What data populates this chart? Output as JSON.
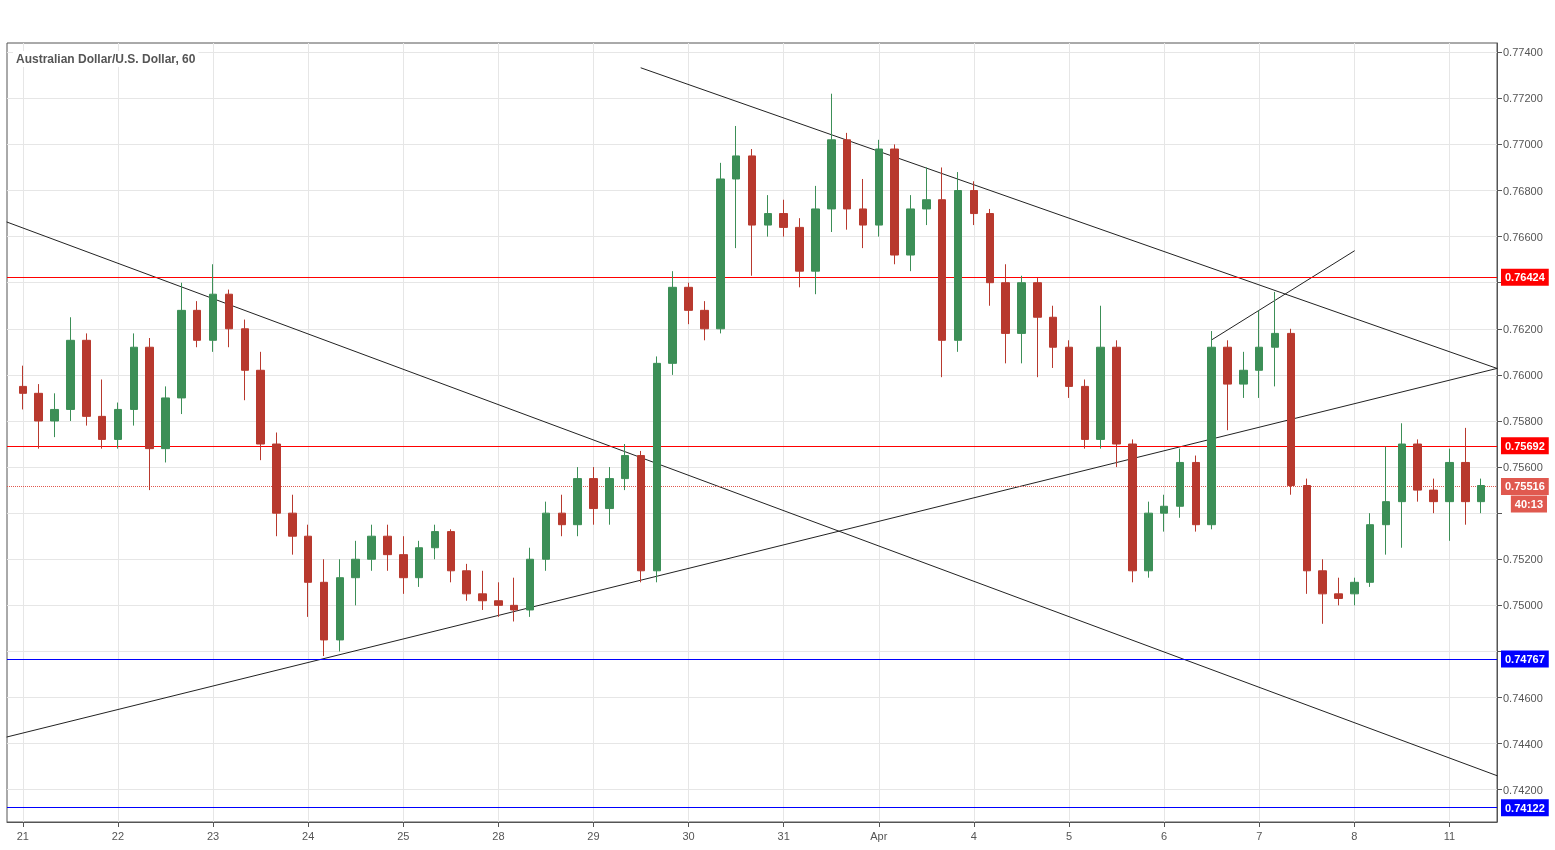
{
  "chart_data": {
    "type": "candlestick",
    "title": "Australian Dollar/U.S. Dollar, 60",
    "categories": [
      null,
      "21",
      null,
      null,
      null,
      null,
      null,
      "22",
      null,
      null,
      null,
      null,
      null,
      "23",
      null,
      null,
      null,
      null,
      null,
      "24",
      null,
      null,
      null,
      null,
      null,
      "25",
      null,
      null,
      null,
      null,
      null,
      "28",
      null,
      null,
      null,
      null,
      null,
      "29",
      null,
      null,
      null,
      null,
      null,
      "30",
      null,
      null,
      null,
      null,
      null,
      "31",
      null,
      null,
      null,
      null,
      null,
      "Apr",
      null,
      null,
      null,
      null,
      null,
      "4",
      null,
      null,
      null,
      null,
      null,
      "5",
      null,
      null,
      null,
      null,
      null,
      "6",
      null,
      null,
      null,
      null,
      null,
      "7",
      null,
      null,
      null,
      null,
      null,
      "8",
      null,
      null,
      null,
      null,
      null,
      "11",
      null,
      null,
      null
    ],
    "ohlc": [
      null,
      [
        0.7595,
        0.7604,
        0.7585,
        0.7592
      ],
      [
        0.7592,
        0.7596,
        0.7568,
        0.758
      ],
      [
        0.758,
        0.7592,
        0.7573,
        0.7585
      ],
      [
        0.7585,
        0.7625,
        0.758,
        0.7615
      ],
      [
        0.7615,
        0.7618,
        0.7578,
        0.7582
      ],
      [
        0.7582,
        0.7598,
        0.7568,
        0.7572
      ],
      [
        0.7572,
        0.7588,
        0.7568,
        0.7585
      ],
      [
        0.7585,
        0.7618,
        0.7578,
        0.7612
      ],
      [
        0.7612,
        0.7616,
        0.755,
        0.7568
      ],
      [
        0.7568,
        0.7595,
        0.7562,
        0.759
      ],
      [
        0.759,
        0.764,
        0.7583,
        0.7628
      ],
      [
        0.7628,
        0.7632,
        0.7612,
        0.7615
      ],
      [
        0.7615,
        0.7648,
        0.761,
        0.7635
      ],
      [
        0.7635,
        0.7637,
        0.7612,
        0.762
      ],
      [
        0.762,
        0.7624,
        0.7589,
        0.7602
      ],
      [
        0.7602,
        0.761,
        0.7563,
        0.757
      ],
      [
        0.757,
        0.7575,
        0.753,
        0.754
      ],
      [
        0.754,
        0.7548,
        0.7522,
        0.753
      ],
      [
        0.753,
        0.7535,
        0.7495,
        0.751
      ],
      [
        0.751,
        0.752,
        0.7478,
        0.7485
      ],
      [
        0.7485,
        0.752,
        0.748,
        0.7512
      ],
      [
        0.7512,
        0.7528,
        0.75,
        0.752
      ],
      [
        0.752,
        0.7535,
        0.7515,
        0.753
      ],
      [
        0.753,
        0.7535,
        0.7515,
        0.7522
      ],
      [
        0.7522,
        0.753,
        0.7505,
        0.7512
      ],
      [
        0.7512,
        0.7528,
        0.7508,
        0.7525
      ],
      [
        0.7525,
        0.7535,
        0.752,
        0.7532
      ],
      [
        0.7532,
        0.7533,
        0.751,
        0.7515
      ],
      [
        0.7515,
        0.7518,
        0.7502,
        0.7505
      ],
      [
        0.7505,
        0.7515,
        0.7498,
        0.7502
      ],
      [
        0.7502,
        0.751,
        0.7495,
        0.75
      ],
      [
        0.75,
        0.7512,
        0.7493,
        0.7498
      ],
      [
        0.7498,
        0.7525,
        0.7495,
        0.752
      ],
      [
        0.752,
        0.7545,
        0.7515,
        0.754
      ],
      [
        0.754,
        0.7548,
        0.753,
        0.7535
      ],
      [
        0.7535,
        0.756,
        0.753,
        0.7555
      ],
      [
        0.7555,
        0.756,
        0.7535,
        0.7542
      ],
      [
        0.7542,
        0.756,
        0.7535,
        0.7555
      ],
      [
        0.7555,
        0.757,
        0.755,
        0.7565
      ],
      [
        0.7565,
        0.7567,
        0.751,
        0.7515
      ],
      [
        0.7515,
        0.7608,
        0.751,
        0.7605
      ],
      [
        0.7605,
        0.7645,
        0.76,
        0.7638
      ],
      [
        0.7638,
        0.764,
        0.7622,
        0.7628
      ],
      [
        0.7628,
        0.7632,
        0.7615,
        0.762
      ],
      [
        0.762,
        0.7692,
        0.7618,
        0.7685
      ],
      [
        0.7685,
        0.7708,
        0.7655,
        0.7695
      ],
      [
        0.7695,
        0.7698,
        0.7643,
        0.7665
      ],
      [
        0.7665,
        0.7678,
        0.766,
        0.767
      ],
      [
        0.767,
        0.7676,
        0.766,
        0.7664
      ],
      [
        0.7664,
        0.7668,
        0.7638,
        0.7645
      ],
      [
        0.7645,
        0.7682,
        0.7635,
        0.7672
      ],
      [
        0.7672,
        0.7722,
        0.7662,
        0.7702
      ],
      [
        0.7702,
        0.7705,
        0.7663,
        0.7672
      ],
      [
        0.7672,
        0.7685,
        0.7655,
        0.7665
      ],
      [
        0.7665,
        0.7702,
        0.766,
        0.7698
      ],
      [
        0.7698,
        0.77,
        0.7648,
        0.7652
      ],
      [
        0.7652,
        0.7678,
        0.7645,
        0.7672
      ],
      [
        0.7672,
        0.769,
        0.7665,
        0.7676
      ],
      [
        0.7676,
        0.769,
        0.7599,
        0.7615
      ],
      [
        0.7615,
        0.7688,
        0.761,
        0.768
      ],
      [
        0.768,
        0.7684,
        0.7665,
        0.767
      ],
      [
        0.767,
        0.7672,
        0.763,
        0.764
      ],
      [
        0.764,
        0.7648,
        0.7605,
        0.7618
      ],
      [
        0.7618,
        0.7643,
        0.7605,
        0.764
      ],
      [
        0.764,
        0.7642,
        0.7599,
        0.7625
      ],
      [
        0.7625,
        0.763,
        0.7603,
        0.7612
      ],
      [
        0.7612,
        0.7615,
        0.759,
        0.7595
      ],
      [
        0.7595,
        0.7598,
        0.7568,
        0.7572
      ],
      [
        0.7572,
        0.763,
        0.7568,
        0.7612
      ],
      [
        0.7612,
        0.7615,
        0.756,
        0.757
      ],
      [
        0.757,
        0.7572,
        0.751,
        0.7515
      ],
      [
        0.7515,
        0.7545,
        0.7512,
        0.754
      ],
      [
        0.754,
        0.7548,
        0.7532,
        0.7543
      ],
      [
        0.7543,
        0.7568,
        0.7538,
        0.7562
      ],
      [
        0.7562,
        0.7565,
        0.7532,
        0.7535
      ],
      [
        0.7535,
        0.7619,
        0.7533,
        0.7612
      ],
      [
        0.7612,
        0.7615,
        0.7576,
        0.7596
      ],
      [
        0.7596,
        0.761,
        0.759,
        0.7602
      ],
      [
        0.7602,
        0.7628,
        0.759,
        0.7612
      ],
      [
        0.7612,
        0.7636,
        0.7595,
        0.7618
      ],
      [
        0.7618,
        0.762,
        0.7548,
        0.7552
      ],
      [
        0.7552,
        0.7555,
        0.7505,
        0.7515
      ],
      [
        0.7515,
        0.752,
        0.7492,
        0.7505
      ],
      [
        0.7505,
        0.7512,
        0.75,
        0.7503
      ],
      [
        0.7505,
        0.7512,
        0.75,
        0.751
      ],
      [
        0.751,
        0.754,
        0.7508,
        0.7535
      ],
      [
        0.7535,
        0.7569,
        0.7522,
        0.7545
      ],
      [
        0.7545,
        0.7579,
        0.7525,
        0.757
      ],
      [
        0.757,
        0.7572,
        0.7545,
        0.755
      ],
      [
        0.755,
        0.7555,
        0.754,
        0.7545
      ],
      [
        0.7545,
        0.7568,
        0.7528,
        0.7562
      ],
      [
        0.7562,
        0.7577,
        0.7535,
        0.7545
      ],
      [
        0.7545,
        0.7555,
        0.754,
        0.7552
      ],
      null
    ],
    "colors": [
      null,
      "#b8392e",
      "#b8392e",
      "#3c8f57",
      "#3c8f57",
      "#b8392e",
      "#b8392e",
      "#3c8f57",
      "#3c8f57",
      "#b8392e",
      "#3c8f57",
      "#3c8f57",
      "#b8392e",
      "#3c8f57",
      "#b8392e",
      "#b8392e",
      "#b8392e",
      "#b8392e",
      "#b8392e",
      "#b8392e",
      "#b8392e",
      "#3c8f57",
      "#3c8f57",
      "#3c8f57",
      "#b8392e",
      "#b8392e",
      "#3c8f57",
      "#3c8f57",
      "#b8392e",
      "#b8392e",
      "#b8392e",
      "#b8392e",
      "#b8392e",
      "#3c8f57",
      "#3c8f57",
      "#b8392e",
      "#3c8f57",
      "#b8392e",
      "#3c8f57",
      "#3c8f57",
      "#b8392e",
      "#3c8f57",
      "#3c8f57",
      "#b8392e",
      "#b8392e",
      "#3c8f57",
      "#3c8f57",
      "#b8392e",
      "#3c8f57",
      "#b8392e",
      "#b8392e",
      "#3c8f57",
      "#3c8f57",
      "#b8392e",
      "#b8392e",
      "#3c8f57",
      "#b8392e",
      "#3c8f57",
      "#3c8f57",
      "#b8392e",
      "#3c8f57",
      "#b8392e",
      "#b8392e",
      "#b8392e",
      "#3c8f57",
      "#b8392e",
      "#b8392e",
      "#b8392e",
      "#b8392e",
      "#3c8f57",
      "#b8392e",
      "#b8392e",
      "#3c8f57",
      "#3c8f57",
      "#3c8f57",
      "#b8392e",
      "#3c8f57",
      "#b8392e",
      "#3c8f57",
      "#3c8f57",
      "#3c8f57",
      "#b8392e",
      "#b8392e",
      "#b8392e",
      "#b8392e",
      "#3c8f57",
      "#3c8f57",
      "#3c8f57",
      "#3c8f57",
      "#b8392e",
      "#b8392e",
      "#3c8f57",
      "#b8392e",
      "#3c8f57",
      null
    ],
    "series": [
      {
        "type": "line",
        "color": "#222222",
        "values": [
          0.76663,
          null,
          null,
          null,
          null,
          null,
          null,
          null,
          null,
          null,
          null,
          null,
          null,
          null,
          null,
          null,
          null,
          null,
          null,
          null,
          null,
          null,
          null,
          null,
          null,
          null,
          null,
          null,
          null,
          null,
          null,
          null,
          null,
          null,
          null,
          null,
          null,
          null,
          null,
          null,
          null,
          null,
          null,
          null,
          null,
          null,
          null,
          null,
          null,
          null,
          null,
          null,
          null,
          null,
          null,
          null,
          null,
          null,
          null,
          null,
          null,
          null,
          null,
          null,
          null,
          null,
          null,
          null,
          null,
          null,
          null,
          null,
          null,
          null,
          null,
          null,
          null,
          null,
          null,
          null,
          null,
          null,
          null,
          null,
          null,
          null,
          null,
          null,
          null,
          null,
          null,
          null,
          null,
          null,
          0.74261
        ]
      },
      {
        "type": "line",
        "color": "#222222",
        "values": [
          0.74429,
          null,
          null,
          null,
          null,
          null,
          null,
          null,
          null,
          null,
          null,
          null,
          null,
          null,
          null,
          null,
          null,
          null,
          null,
          null,
          null,
          null,
          null,
          null,
          null,
          null,
          null,
          null,
          null,
          null,
          null,
          null,
          null,
          null,
          null,
          null,
          null,
          null,
          null,
          null,
          null,
          null,
          null,
          null,
          null,
          null,
          null,
          null,
          null,
          null,
          null,
          null,
          null,
          null,
          null,
          null,
          null,
          null,
          null,
          null,
          null,
          null,
          null,
          null,
          null,
          null,
          null,
          null,
          null,
          null,
          null,
          null,
          null,
          null,
          null,
          null,
          null,
          null,
          null,
          null,
          null,
          null,
          null,
          null,
          null,
          null,
          null,
          null,
          null,
          null,
          null,
          null,
          null,
          null,
          0.76028
        ]
      },
      {
        "type": "line",
        "color": "#222222",
        "values": [
          null,
          null,
          null,
          null,
          null,
          null,
          null,
          null,
          null,
          null,
          null,
          null,
          null,
          null,
          null,
          null,
          null,
          null,
          null,
          null,
          null,
          null,
          null,
          null,
          null,
          null,
          null,
          null,
          null,
          null,
          null,
          null,
          null,
          null,
          null,
          null,
          null,
          null,
          null,
          null,
          0.77332,
          null,
          null,
          null,
          null,
          null,
          null,
          null,
          null,
          null,
          null,
          null,
          null,
          null,
          null,
          null,
          null,
          null,
          null,
          null,
          null,
          null,
          null,
          null,
          null,
          null,
          null,
          null,
          null,
          null,
          null,
          null,
          null,
          null,
          null,
          null,
          null,
          null,
          null,
          null,
          null,
          null,
          null,
          null,
          null,
          null,
          null,
          null,
          null,
          null,
          null,
          null,
          null,
          null,
          0.76028
        ]
      },
      {
        "type": "line",
        "color": "#222222",
        "values": [
          null,
          null,
          null,
          null,
          null,
          null,
          null,
          null,
          null,
          null,
          null,
          null,
          null,
          null,
          null,
          null,
          null,
          null,
          null,
          null,
          null,
          null,
          null,
          null,
          null,
          null,
          null,
          null,
          null,
          null,
          null,
          null,
          null,
          null,
          null,
          null,
          null,
          null,
          null,
          null,
          null,
          null,
          null,
          null,
          null,
          null,
          null,
          null,
          null,
          null,
          null,
          null,
          null,
          null,
          null,
          null,
          null,
          null,
          null,
          null,
          null,
          null,
          null,
          null,
          null,
          null,
          null,
          null,
          null,
          null,
          null,
          null,
          null,
          null,
          null,
          null,
          0.76152,
          null,
          null,
          null,
          null,
          null,
          null,
          null,
          null,
          0.76538,
          null,
          null,
          null,
          null,
          null,
          null,
          null,
          null,
          null
        ]
      }
    ],
    "ylim": [
      0.7406,
      0.7744
    ],
    "yticks": [
      {
        "value": 0.742,
        "label": "0.74200"
      },
      {
        "value": 0.744,
        "label": "0.74400"
      },
      {
        "value": 0.746,
        "label": "0.74600"
      },
      {
        "value": 0.748,
        "label": null
      },
      {
        "value": 0.75,
        "label": "0.75000"
      },
      {
        "value": 0.752,
        "label": "0.75200"
      },
      {
        "value": 0.754,
        "label": null
      },
      {
        "value": 0.756,
        "label": "0.75600"
      },
      {
        "value": 0.758,
        "label": "0.75800"
      },
      {
        "value": 0.76,
        "label": "0.76000"
      },
      {
        "value": 0.762,
        "label": "0.76200"
      },
      {
        "value": 0.764,
        "label": null
      },
      {
        "value": 0.766,
        "label": "0.76600"
      },
      {
        "value": 0.768,
        "label": "0.76800"
      },
      {
        "value": 0.77,
        "label": "0.77000"
      },
      {
        "value": 0.772,
        "label": "0.77200"
      },
      {
        "value": 0.774,
        "label": "0.77400"
      }
    ],
    "ref_lines": [
      {
        "axis": "y",
        "value": 0.76424,
        "label": "0.76424",
        "color": "#ff0000"
      },
      {
        "axis": "y",
        "value": 0.75692,
        "label": "0.75692",
        "color": "#ff0000"
      },
      {
        "axis": "y",
        "value": 0.75516,
        "label": "0.75516",
        "color": "#e0594f",
        "line_style": "dotted"
      },
      {
        "axis": "y",
        "value": 0.74767,
        "label": "0.74767",
        "color": "#0000ff"
      },
      {
        "axis": "y",
        "value": 0.74122,
        "label": "0.74122",
        "color": "#0000ff"
      }
    ],
    "annotations": [
      "40:13"
    ],
    "grid": true,
    "marker": "none",
    "line_style": "solid"
  }
}
